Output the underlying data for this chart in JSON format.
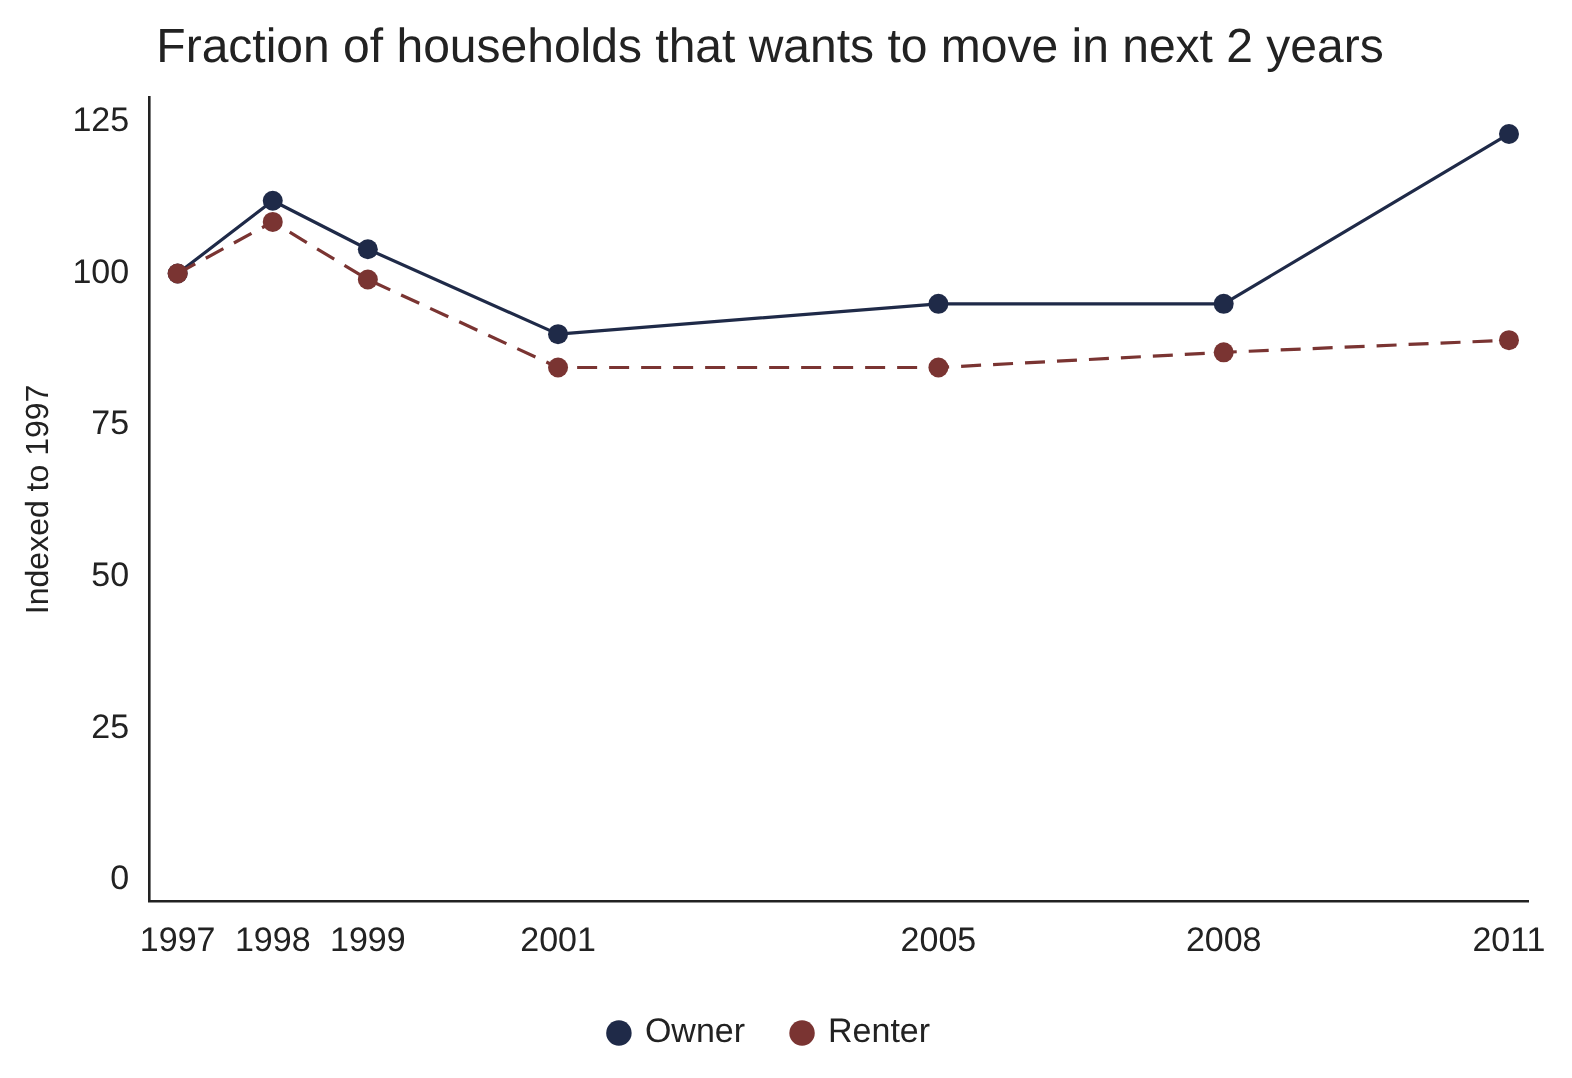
{
  "chart_data": {
    "type": "line",
    "title": "Fraction of households that wants to move in next 2 years",
    "ylabel": "Indexed to 1997",
    "x": [
      1997,
      1998,
      1999,
      2001,
      2005,
      2008,
      2011
    ],
    "series": [
      {
        "name": "Owner",
        "color": "#1f2a48",
        "line_style": "solid",
        "values": [
          100,
          112,
          104,
          90,
          95,
          95,
          123
        ]
      },
      {
        "name": "Renter",
        "color": "#7a3432",
        "line_style": "dashed",
        "values": [
          100,
          108.5,
          99,
          84.5,
          84.5,
          87,
          89
        ]
      }
    ],
    "xlim": [
      1996.7,
      2011.2
    ],
    "xticks": [
      1997,
      1998,
      1999,
      2001,
      2005,
      2008,
      2011
    ],
    "ylim": [
      -3.5,
      129
    ],
    "yticks": [
      0,
      25,
      50,
      75,
      100,
      125
    ],
    "grid": false,
    "legend": "bottom",
    "marker": "circle"
  }
}
